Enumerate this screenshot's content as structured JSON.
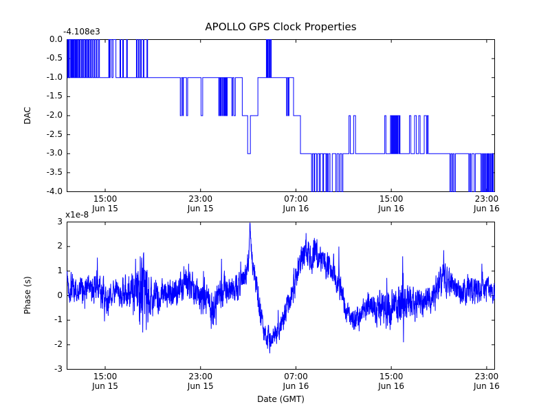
{
  "figure": {
    "title": "APOLLO GPS Clock Properties",
    "background_color": "#ffffff",
    "line_color": "#0000ff",
    "axis_color": "#000000",
    "x_units": "hours since Jun 15 00:00 GMT"
  },
  "chart_data": [
    {
      "type": "line",
      "subplot": "top",
      "style": "steps",
      "ylabel": "DAC",
      "y_offset_label": "-4.108e3",
      "ylim": [
        -4.0,
        0.0
      ],
      "ytick_values": [
        0.0,
        -0.5,
        -1.0,
        -1.5,
        -2.0,
        -2.5,
        -3.0,
        -3.5,
        -4.0
      ],
      "ytick_labels": [
        "0.0",
        "-0.5",
        "-1.0",
        "-1.5",
        "-2.0",
        "-2.5",
        "-3.0",
        "-3.5",
        "-4.0"
      ],
      "xlim_hours": [
        11.8,
        47.67
      ],
      "xticks": [
        {
          "hour": 15,
          "time": "15:00",
          "date": "Jun 15"
        },
        {
          "hour": 23,
          "time": "23:00",
          "date": "Jun 15"
        },
        {
          "hour": 31,
          "time": "07:00",
          "date": "Jun 16"
        },
        {
          "hour": 39,
          "time": "15:00",
          "date": "Jun 16"
        },
        {
          "hour": 47,
          "time": "23:00",
          "date": "Jun 16"
        }
      ],
      "steps": [
        [
          11.8,
          0
        ],
        [
          11.84,
          -1
        ],
        [
          11.89,
          0
        ],
        [
          11.95,
          -1
        ],
        [
          12.0,
          0
        ],
        [
          12.1,
          -1
        ],
        [
          12.14,
          0
        ],
        [
          12.18,
          -1
        ],
        [
          12.24,
          0
        ],
        [
          12.28,
          -1
        ],
        [
          12.34,
          0
        ],
        [
          12.4,
          -1
        ],
        [
          12.47,
          0
        ],
        [
          12.52,
          -1
        ],
        [
          12.58,
          0
        ],
        [
          12.63,
          -1
        ],
        [
          12.7,
          0
        ],
        [
          12.76,
          -1
        ],
        [
          12.84,
          0
        ],
        [
          12.9,
          -1
        ],
        [
          13.0,
          0
        ],
        [
          13.06,
          -1
        ],
        [
          13.14,
          0
        ],
        [
          13.2,
          -1
        ],
        [
          13.3,
          0
        ],
        [
          13.36,
          -1
        ],
        [
          13.44,
          0
        ],
        [
          13.5,
          -1
        ],
        [
          13.58,
          0
        ],
        [
          13.64,
          -1
        ],
        [
          13.74,
          0
        ],
        [
          13.8,
          -1
        ],
        [
          13.9,
          0
        ],
        [
          13.97,
          -1
        ],
        [
          14.08,
          0
        ],
        [
          14.14,
          -1
        ],
        [
          14.26,
          0
        ],
        [
          14.32,
          -1
        ],
        [
          14.45,
          0
        ],
        [
          14.52,
          -1
        ],
        [
          15.3,
          0
        ],
        [
          15.36,
          -1
        ],
        [
          15.42,
          0
        ],
        [
          15.56,
          -1
        ],
        [
          15.66,
          0
        ],
        [
          15.9,
          -1
        ],
        [
          16.24,
          0
        ],
        [
          16.3,
          -1
        ],
        [
          16.47,
          0
        ],
        [
          16.53,
          -1
        ],
        [
          16.8,
          0
        ],
        [
          16.86,
          -1
        ],
        [
          17.62,
          0
        ],
        [
          17.68,
          -1
        ],
        [
          17.8,
          0
        ],
        [
          17.86,
          -1
        ],
        [
          17.97,
          0
        ],
        [
          18.03,
          -1
        ],
        [
          18.19,
          0
        ],
        [
          18.25,
          -1
        ],
        [
          18.5,
          0
        ],
        [
          18.56,
          -1
        ],
        [
          21.3,
          -2
        ],
        [
          21.4,
          -1
        ],
        [
          21.5,
          -2
        ],
        [
          21.56,
          -1
        ],
        [
          21.82,
          -2
        ],
        [
          21.92,
          -1
        ],
        [
          23.04,
          -2
        ],
        [
          23.18,
          -1
        ],
        [
          24.53,
          -2
        ],
        [
          24.59,
          -1
        ],
        [
          24.66,
          -2
        ],
        [
          24.72,
          -1
        ],
        [
          24.8,
          -2
        ],
        [
          24.86,
          -1
        ],
        [
          24.94,
          -2
        ],
        [
          25.0,
          -1
        ],
        [
          25.06,
          -2
        ],
        [
          25.12,
          -1
        ],
        [
          25.18,
          -2
        ],
        [
          25.24,
          -1
        ],
        [
          25.62,
          -2
        ],
        [
          25.7,
          -1
        ],
        [
          25.8,
          -2
        ],
        [
          25.92,
          -1
        ],
        [
          26.5,
          -2
        ],
        [
          26.95,
          -3
        ],
        [
          27.18,
          -2
        ],
        [
          27.81,
          -1
        ],
        [
          28.52,
          0
        ],
        [
          28.57,
          -1
        ],
        [
          28.63,
          0
        ],
        [
          28.68,
          -1
        ],
        [
          28.76,
          0
        ],
        [
          28.81,
          -1
        ],
        [
          28.88,
          0
        ],
        [
          28.93,
          -1
        ],
        [
          30.21,
          -2
        ],
        [
          30.28,
          -1
        ],
        [
          30.36,
          -2
        ],
        [
          30.42,
          -1
        ],
        [
          30.8,
          -2
        ],
        [
          31.38,
          -3
        ],
        [
          32.31,
          -4
        ],
        [
          32.39,
          -3
        ],
        [
          32.52,
          -4
        ],
        [
          32.58,
          -3
        ],
        [
          32.74,
          -4
        ],
        [
          32.82,
          -3
        ],
        [
          32.98,
          -4
        ],
        [
          33.04,
          -3
        ],
        [
          33.26,
          -4
        ],
        [
          33.32,
          -3
        ],
        [
          33.52,
          -4
        ],
        [
          33.58,
          -3
        ],
        [
          33.66,
          -4
        ],
        [
          33.74,
          -3
        ],
        [
          33.86,
          -4
        ],
        [
          34.05,
          -3
        ],
        [
          34.35,
          -4
        ],
        [
          34.45,
          -3
        ],
        [
          34.6,
          -4
        ],
        [
          34.7,
          -3
        ],
        [
          34.84,
          -4
        ],
        [
          34.94,
          -3
        ],
        [
          35.45,
          -2
        ],
        [
          35.56,
          -3
        ],
        [
          35.84,
          -2
        ],
        [
          36.0,
          -3
        ],
        [
          38.45,
          -2
        ],
        [
          38.55,
          -3
        ],
        [
          38.93,
          -2
        ],
        [
          39.0,
          -3
        ],
        [
          39.06,
          -2
        ],
        [
          39.12,
          -3
        ],
        [
          39.18,
          -2
        ],
        [
          39.24,
          -3
        ],
        [
          39.3,
          -2
        ],
        [
          39.36,
          -3
        ],
        [
          39.42,
          -2
        ],
        [
          39.48,
          -3
        ],
        [
          39.54,
          -2
        ],
        [
          39.62,
          -3
        ],
        [
          39.68,
          -2
        ],
        [
          39.73,
          -3
        ],
        [
          40.52,
          -2
        ],
        [
          40.64,
          -3
        ],
        [
          40.95,
          -2
        ],
        [
          41.1,
          -3
        ],
        [
          41.3,
          -2
        ],
        [
          41.42,
          -3
        ],
        [
          41.76,
          -2
        ],
        [
          41.95,
          -3
        ],
        [
          42.02,
          -2
        ],
        [
          42.1,
          -3
        ],
        [
          43.92,
          -4
        ],
        [
          44.0,
          -3
        ],
        [
          44.1,
          -4
        ],
        [
          44.18,
          -3
        ],
        [
          44.28,
          -4
        ],
        [
          44.38,
          -3
        ],
        [
          45.5,
          -4
        ],
        [
          45.58,
          -3
        ],
        [
          45.66,
          -4
        ],
        [
          45.76,
          -3
        ],
        [
          45.95,
          -4
        ],
        [
          46.05,
          -3
        ],
        [
          46.52,
          -4
        ],
        [
          46.6,
          -3
        ],
        [
          46.66,
          -4
        ],
        [
          46.74,
          -3
        ],
        [
          46.8,
          -4
        ],
        [
          46.88,
          -3
        ],
        [
          46.94,
          -4
        ],
        [
          47.02,
          -3
        ],
        [
          47.08,
          -4
        ],
        [
          47.14,
          -3
        ],
        [
          47.2,
          -4
        ],
        [
          47.28,
          -3
        ],
        [
          47.34,
          -4
        ],
        [
          47.42,
          -3
        ],
        [
          47.46,
          -4
        ],
        [
          47.52,
          -3
        ],
        [
          47.56,
          -4
        ]
      ]
    },
    {
      "type": "line",
      "subplot": "bottom",
      "style": "noisy",
      "ylabel": "Phase (s)",
      "y_multiplier_label": "x1e-8",
      "value_units": "1e-8 s",
      "xlabel": "Date (GMT)",
      "ylim": [
        -3,
        3
      ],
      "ytick_values": [
        3,
        2,
        1,
        0,
        -1,
        -2,
        -3
      ],
      "ytick_labels": [
        "3",
        "2",
        "1",
        "0",
        "-1",
        "-2",
        "-3"
      ],
      "xlim_hours": [
        11.8,
        47.67
      ],
      "xticks": [
        {
          "hour": 15,
          "time": "15:00",
          "date": "Jun 15"
        },
        {
          "hour": 23,
          "time": "23:00",
          "date": "Jun 15"
        },
        {
          "hour": 31,
          "time": "07:00",
          "date": "Jun 16"
        },
        {
          "hour": 39,
          "time": "15:00",
          "date": "Jun 16"
        },
        {
          "hour": 47,
          "time": "23:00",
          "date": "Jun 16"
        }
      ],
      "anchors": [
        [
          11.8,
          0.85,
          0.25
        ],
        [
          11.95,
          0.3,
          0.55
        ],
        [
          12.6,
          0.15,
          0.55
        ],
        [
          13.3,
          0.25,
          0.5
        ],
        [
          14.0,
          0.35,
          0.6
        ],
        [
          14.6,
          0.3,
          0.6
        ],
        [
          15.05,
          -0.25,
          0.55
        ],
        [
          15.6,
          0.1,
          0.5
        ],
        [
          16.2,
          0.2,
          0.5
        ],
        [
          16.9,
          0.15,
          0.6
        ],
        [
          17.5,
          0.25,
          1.0
        ],
        [
          18.0,
          0.25,
          1.3
        ],
        [
          18.6,
          0.05,
          1.1
        ],
        [
          19.1,
          -0.05,
          0.6
        ],
        [
          19.8,
          0.05,
          0.55
        ],
        [
          20.5,
          0.1,
          0.55
        ],
        [
          21.2,
          0.35,
          0.6
        ],
        [
          21.8,
          0.5,
          0.6
        ],
        [
          22.3,
          0.3,
          0.6
        ],
        [
          22.9,
          0.05,
          0.55
        ],
        [
          23.6,
          -0.35,
          0.6
        ],
        [
          24.1,
          -0.45,
          0.6
        ],
        [
          24.6,
          0.0,
          0.55
        ],
        [
          25.2,
          0.3,
          0.55
        ],
        [
          25.8,
          0.2,
          0.5
        ],
        [
          26.3,
          0.45,
          0.5
        ],
        [
          26.9,
          1.05,
          0.45
        ],
        [
          27.05,
          1.6,
          0.4
        ],
        [
          27.15,
          2.9,
          0.1
        ],
        [
          27.3,
          1.45,
          0.45
        ],
        [
          27.6,
          0.6,
          0.5
        ],
        [
          28.0,
          -0.6,
          0.5
        ],
        [
          28.3,
          -1.45,
          0.45
        ],
        [
          28.8,
          -1.85,
          0.45
        ],
        [
          29.3,
          -1.6,
          0.4
        ],
        [
          29.8,
          -1.1,
          0.45
        ],
        [
          30.3,
          -0.4,
          0.55
        ],
        [
          30.8,
          0.45,
          0.6
        ],
        [
          31.3,
          1.25,
          0.6
        ],
        [
          31.8,
          1.75,
          0.55
        ],
        [
          32.2,
          1.55,
          0.6
        ],
        [
          32.6,
          1.75,
          0.55
        ],
        [
          33.0,
          1.5,
          0.55
        ],
        [
          33.5,
          1.35,
          0.55
        ],
        [
          34.0,
          1.05,
          0.55
        ],
        [
          34.5,
          0.7,
          0.6
        ],
        [
          34.9,
          0.1,
          0.55
        ],
        [
          35.3,
          -0.75,
          0.4
        ],
        [
          35.9,
          -0.95,
          0.4
        ],
        [
          36.5,
          -0.7,
          0.45
        ],
        [
          37.1,
          -0.4,
          0.55
        ],
        [
          37.7,
          -0.45,
          0.55
        ],
        [
          38.3,
          -0.55,
          0.6
        ],
        [
          38.9,
          -0.45,
          0.65
        ],
        [
          39.5,
          -0.35,
          0.6
        ],
        [
          39.9,
          -0.1,
          1.1
        ],
        [
          40.1,
          -0.5,
          0.8
        ],
        [
          40.6,
          -0.4,
          0.55
        ],
        [
          41.2,
          -0.25,
          0.5
        ],
        [
          41.8,
          -0.2,
          0.5
        ],
        [
          42.4,
          -0.05,
          0.5
        ],
        [
          43.0,
          0.4,
          0.55
        ],
        [
          43.4,
          0.9,
          0.6
        ],
        [
          43.8,
          0.6,
          0.55
        ],
        [
          44.3,
          0.3,
          0.5
        ],
        [
          44.9,
          0.2,
          0.5
        ],
        [
          45.5,
          0.25,
          0.5
        ],
        [
          46.1,
          0.3,
          0.5
        ],
        [
          46.7,
          0.35,
          0.5
        ],
        [
          47.2,
          0.25,
          0.45
        ],
        [
          47.67,
          0.15,
          0.4
        ]
      ],
      "spikes": [
        [
          14.35,
          1.55
        ],
        [
          14.95,
          -1.05
        ],
        [
          17.55,
          1.5
        ],
        [
          17.95,
          1.6
        ],
        [
          18.15,
          -1.5
        ],
        [
          18.45,
          -1.4
        ],
        [
          21.6,
          1.2
        ],
        [
          22.0,
          1.3
        ],
        [
          23.25,
          1.0
        ],
        [
          23.9,
          -1.35
        ],
        [
          24.3,
          -1.2
        ],
        [
          24.76,
          1.5
        ],
        [
          27.15,
          2.97
        ],
        [
          28.8,
          -2.35
        ],
        [
          31.85,
          2.55
        ],
        [
          32.55,
          2.35
        ],
        [
          34.6,
          2.0
        ],
        [
          36.3,
          -1.45
        ],
        [
          38.9,
          -1.4
        ],
        [
          39.95,
          1.6
        ],
        [
          40.02,
          -1.9
        ],
        [
          43.4,
          1.85
        ],
        [
          46.6,
          1.3
        ]
      ]
    }
  ]
}
